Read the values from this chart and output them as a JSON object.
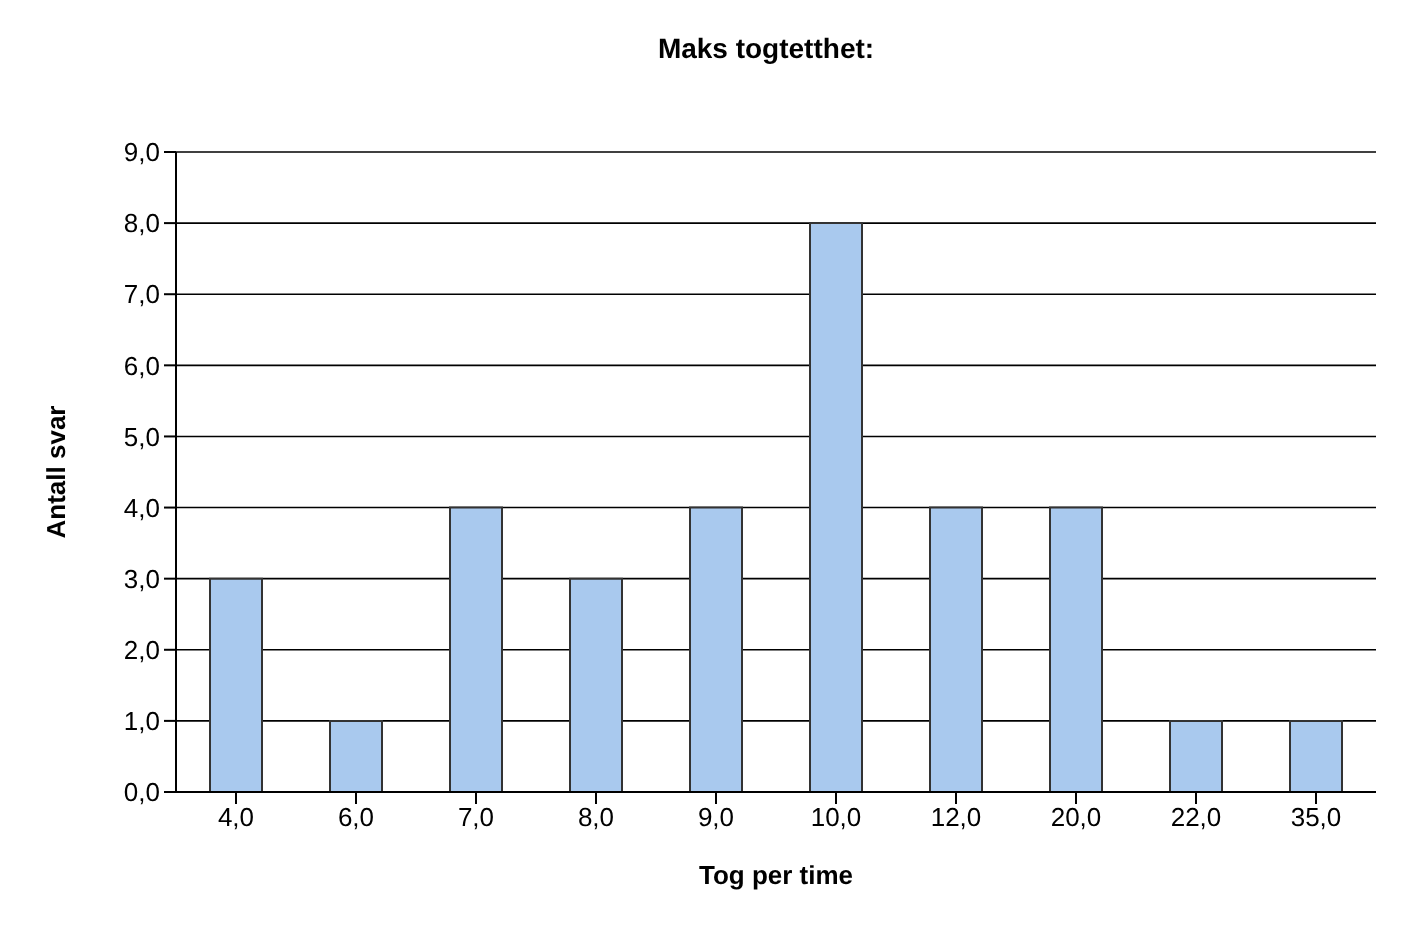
{
  "chart_data": {
    "type": "bar",
    "title": "Maks togtetthet:",
    "xlabel": "Tog per time",
    "ylabel": "Antall svar",
    "categories": [
      "4,0",
      "6,0",
      "7,0",
      "8,0",
      "9,0",
      "10,0",
      "12,0",
      "20,0",
      "22,0",
      "35,0"
    ],
    "values": [
      3,
      1,
      4,
      3,
      4,
      8,
      4,
      4,
      1,
      1
    ],
    "color": "#a9c9ee",
    "ylim": [
      0,
      9
    ],
    "yticks": [
      {
        "value": 0,
        "label": "0,0"
      },
      {
        "value": 1,
        "label": "1,0"
      },
      {
        "value": 2,
        "label": "2,0"
      },
      {
        "value": 3,
        "label": "3,0"
      },
      {
        "value": 4,
        "label": "4,0"
      },
      {
        "value": 5,
        "label": "5,0"
      },
      {
        "value": 6,
        "label": "6,0"
      },
      {
        "value": 7,
        "label": "7,0"
      },
      {
        "value": 8,
        "label": "8,0"
      },
      {
        "value": 9,
        "label": "9,0"
      }
    ],
    "grid": "y",
    "legend": false
  }
}
